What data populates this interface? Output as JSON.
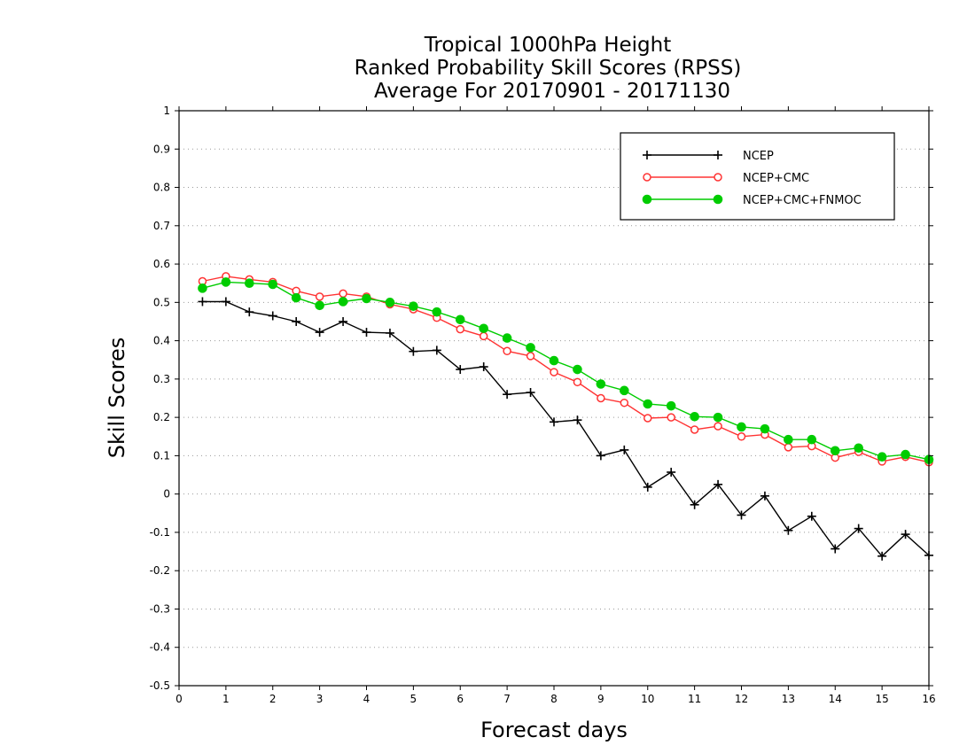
{
  "chart_data": {
    "type": "line",
    "title": [
      "Tropical 1000hPa Height",
      "Ranked Probability Skill Scores (RPSS)",
      "Average For 20170901 - 20171130"
    ],
    "xlabel": "Forecast days",
    "ylabel": "Skill Scores",
    "xlim": [
      0,
      16
    ],
    "ylim": [
      -0.5,
      1
    ],
    "xticks": [
      0,
      1,
      2,
      3,
      4,
      5,
      6,
      7,
      8,
      9,
      10,
      11,
      12,
      13,
      14,
      15,
      16
    ],
    "yticks": [
      -0.5,
      -0.4,
      -0.3,
      -0.2,
      -0.1,
      0,
      0.1,
      0.2,
      0.3,
      0.4,
      0.5,
      0.6,
      0.7,
      0.8,
      0.9,
      1
    ],
    "ytick_labels": [
      "-0.5",
      "-0.4",
      "-0.3",
      "-0.2",
      "-0.1",
      "0",
      "0.1",
      "0.2",
      "0.3",
      "0.4",
      "0.5",
      "0.6",
      "0.7",
      "0.8",
      "0.9",
      "1"
    ],
    "grid": "horizontal dotted",
    "legend_position": "top-right",
    "x": [
      0.5,
      1,
      1.5,
      2,
      2.5,
      3,
      3.5,
      4,
      4.5,
      5,
      5.5,
      6,
      6.5,
      7,
      7.5,
      8,
      8.5,
      9,
      9.5,
      10,
      10.5,
      11,
      11.5,
      12,
      12.5,
      13,
      13.5,
      14,
      14.5,
      15,
      15.5,
      16
    ],
    "series": [
      {
        "name": "NCEP",
        "color": "#000000",
        "marker": "plus",
        "values": [
          0.502,
          0.502,
          0.475,
          0.465,
          0.45,
          0.422,
          0.45,
          0.422,
          0.42,
          0.372,
          0.375,
          0.325,
          0.332,
          0.26,
          0.265,
          0.188,
          0.193,
          0.1,
          0.115,
          0.018,
          0.057,
          -0.028,
          0.025,
          -0.055,
          -0.005,
          -0.095,
          -0.058,
          -0.143,
          -0.09,
          -0.162,
          -0.105,
          -0.16
        ]
      },
      {
        "name": "NCEP+CMC",
        "color": "#ff3333",
        "marker": "open-circle",
        "values": [
          0.555,
          0.568,
          0.56,
          0.553,
          0.53,
          0.515,
          0.523,
          0.515,
          0.495,
          0.482,
          0.46,
          0.43,
          0.412,
          0.373,
          0.36,
          0.318,
          0.292,
          0.25,
          0.238,
          0.198,
          0.2,
          0.168,
          0.177,
          0.15,
          0.155,
          0.122,
          0.125,
          0.095,
          0.11,
          0.085,
          0.097,
          0.083
        ]
      },
      {
        "name": "NCEP+CMC+FNMOC",
        "color": "#00cc00",
        "marker": "filled-circle",
        "values": [
          0.537,
          0.553,
          0.55,
          0.547,
          0.512,
          0.492,
          0.502,
          0.51,
          0.5,
          0.49,
          0.475,
          0.455,
          0.432,
          0.407,
          0.382,
          0.348,
          0.325,
          0.287,
          0.27,
          0.235,
          0.23,
          0.202,
          0.2,
          0.175,
          0.17,
          0.142,
          0.142,
          0.113,
          0.12,
          0.097,
          0.103,
          0.09
        ]
      }
    ]
  }
}
